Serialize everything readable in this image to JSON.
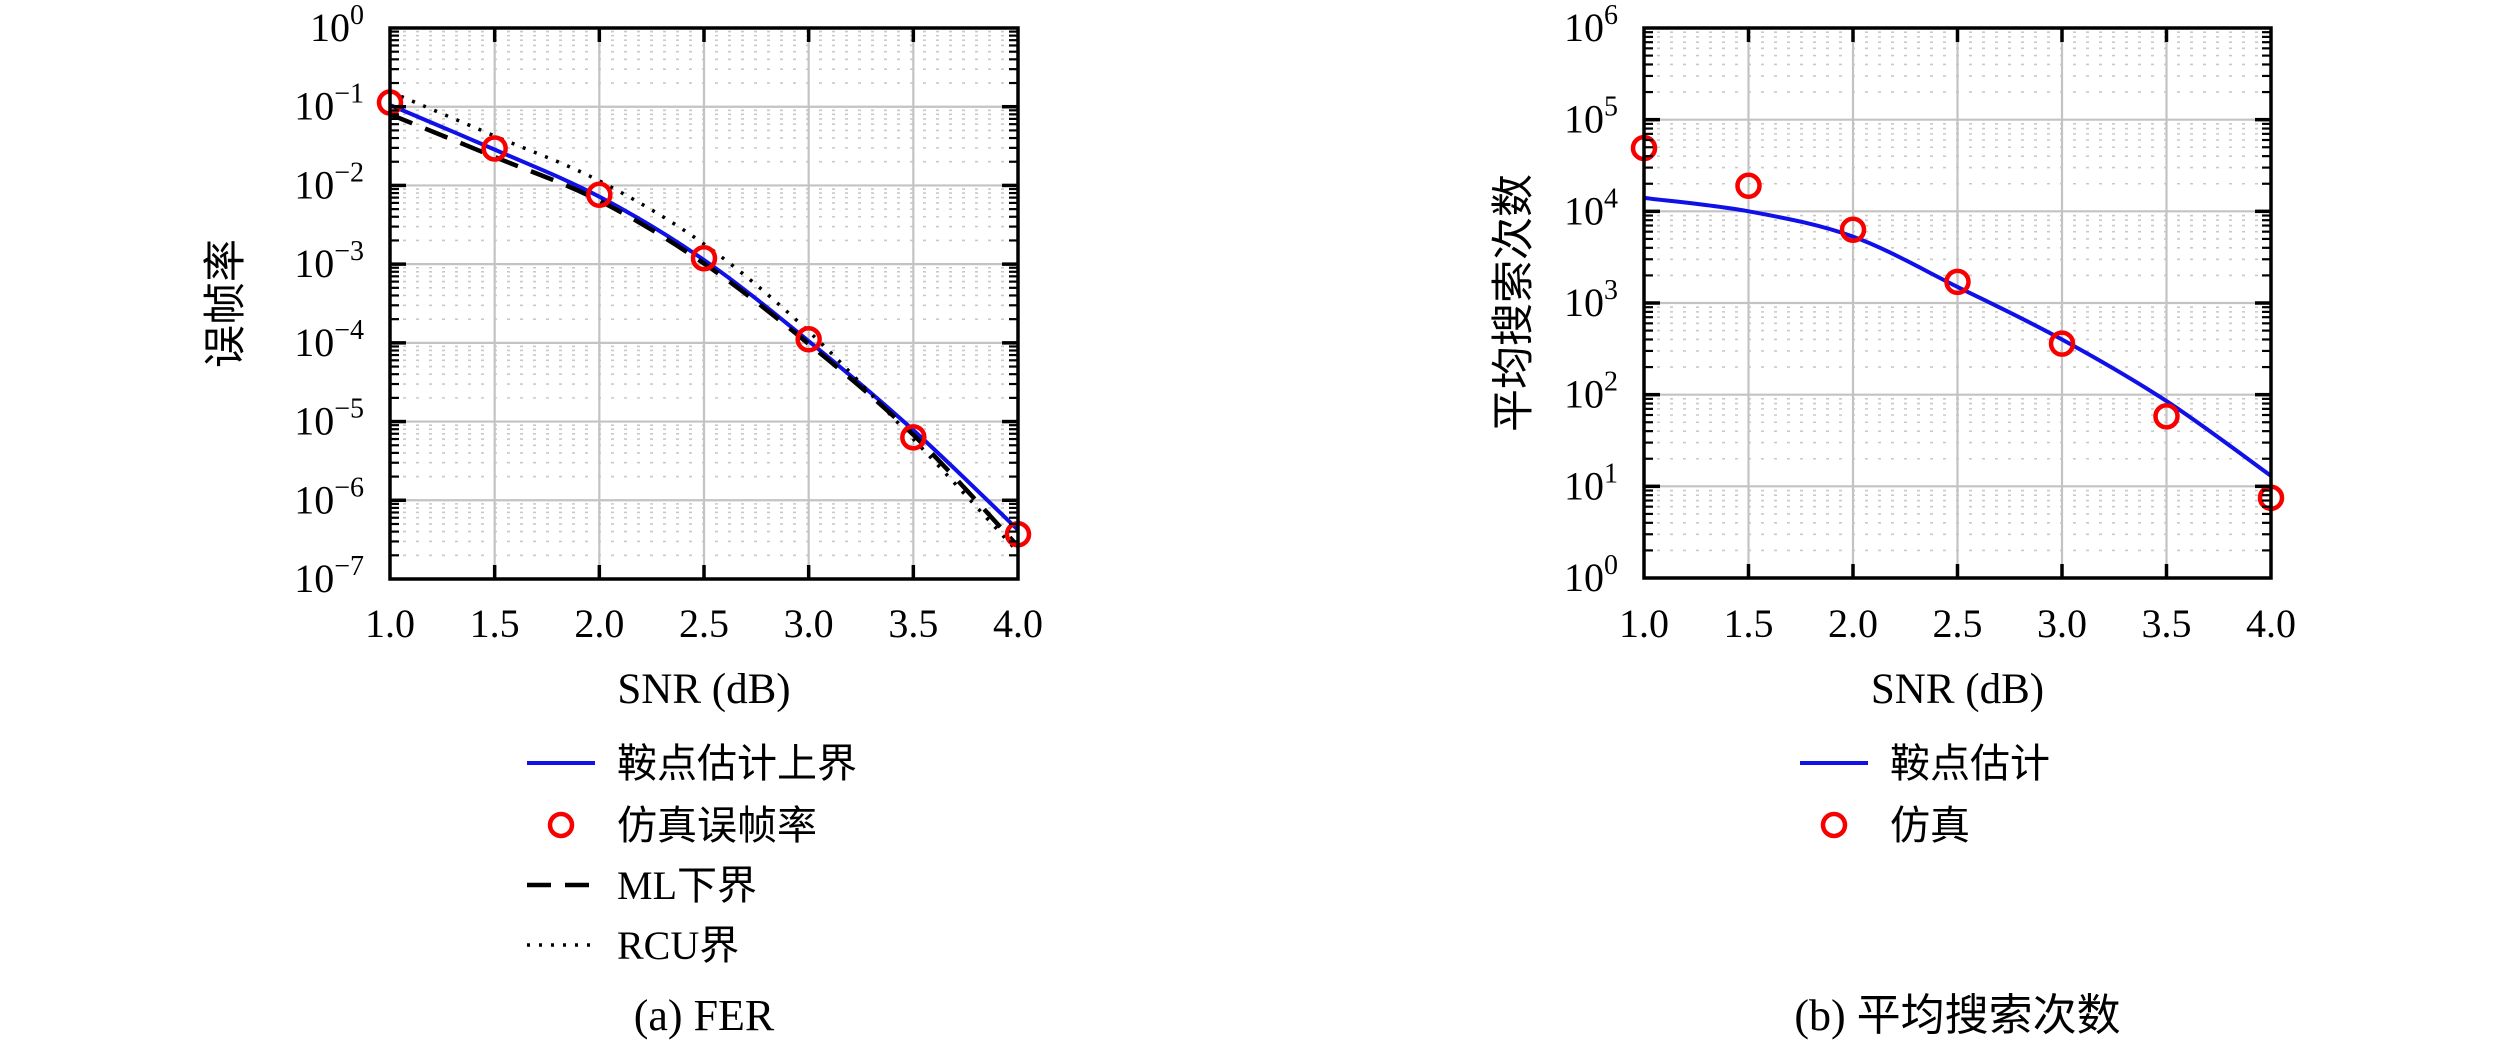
{
  "figure": {
    "background": "#ffffff",
    "colors": {
      "line_blue": "#1010e8",
      "marker_red": "#f80000",
      "line_black": "#000000",
      "grid_major": "#c3c3c3",
      "grid_minor": "#c9c9c9",
      "axis": "#000000"
    },
    "chart_data": [
      {
        "id": "fer",
        "type": "line",
        "caption": "(a) FER",
        "xlabel": "SNR (dB)",
        "ylabel": "误帧率",
        "x_tick_labels": [
          "1.0",
          "1.5",
          "2.0",
          "2.5",
          "3.0",
          "3.5",
          "4.0"
        ],
        "x_ticks": [
          1.0,
          1.5,
          2.0,
          2.5,
          3.0,
          3.5,
          4.0
        ],
        "xlim": [
          1.0,
          4.0
        ],
        "ylog": true,
        "y_exp_min": -7,
        "y_exp_max": 0,
        "grid": {
          "major": true,
          "minor": true
        },
        "legend_position": "below-plot",
        "series": [
          {
            "name": "鞍点估计上界",
            "kind": "line",
            "dash": "solid",
            "color": "line_blue",
            "x": [
              1.0,
              1.5,
              2.0,
              2.5,
              3.0,
              3.5,
              4.0
            ],
            "y": [
              0.105,
              0.0285,
              0.0072,
              0.00113,
              0.000105,
              7.8e-06,
              4.2e-07
            ]
          },
          {
            "name": "仿真误帧率",
            "kind": "scatter",
            "color": "marker_red",
            "x": [
              1.0,
              1.5,
              2.0,
              2.5,
              3.0,
              3.5,
              4.0
            ],
            "y": [
              0.113,
              0.0295,
              0.0076,
              0.00119,
              0.000111,
              6.3e-06,
              3.7e-07
            ]
          },
          {
            "name": "ML下界",
            "kind": "line",
            "dash": "dashed",
            "color": "line_black",
            "x": [
              1.0,
              1.5,
              2.0,
              2.5,
              3.0,
              3.5,
              4.0
            ],
            "y": [
              0.08,
              0.023,
              0.0064,
              0.00102,
              9.7e-05,
              6.8e-06,
              2.6e-07
            ]
          },
          {
            "name": "RCU界",
            "kind": "line",
            "dash": "dotted",
            "color": "line_black",
            "x": [
              1.0,
              1.5,
              2.0,
              2.5,
              3.0,
              3.5,
              4.0
            ],
            "y": [
              0.155,
              0.0425,
              0.0114,
              0.0018,
              0.00014,
              6e-06,
              2.2e-07
            ]
          }
        ]
      },
      {
        "id": "search",
        "type": "line",
        "caption": "(b) 平均搜索次数",
        "xlabel": "SNR (dB)",
        "ylabel": "平均搜索次数",
        "x_tick_labels": [
          "1.0",
          "1.5",
          "2.0",
          "2.5",
          "3.0",
          "3.5",
          "4.0"
        ],
        "x_ticks": [
          1.0,
          1.5,
          2.0,
          2.5,
          3.0,
          3.5,
          4.0
        ],
        "xlim": [
          1.0,
          4.0
        ],
        "ylog": true,
        "y_exp_min": 0,
        "y_exp_max": 6,
        "grid": {
          "major": true,
          "minor": true
        },
        "legend_position": "below-plot",
        "series": [
          {
            "name": "鞍点估计",
            "kind": "line",
            "dash": "solid",
            "color": "line_blue",
            "x": [
              1.0,
              1.5,
              2.0,
              2.5,
              3.0,
              3.5,
              4.0
            ],
            "y": [
              14000,
              10000,
              5300,
              1500,
              400,
              85,
              13
            ]
          },
          {
            "name": "仿真",
            "kind": "scatter",
            "color": "marker_red",
            "x": [
              1.0,
              1.5,
              2.0,
              2.5,
              3.0,
              3.5,
              4.0
            ],
            "y": [
              49000,
              19000,
              6300,
              1700,
              360,
              58,
              7.5
            ]
          }
        ]
      }
    ]
  }
}
